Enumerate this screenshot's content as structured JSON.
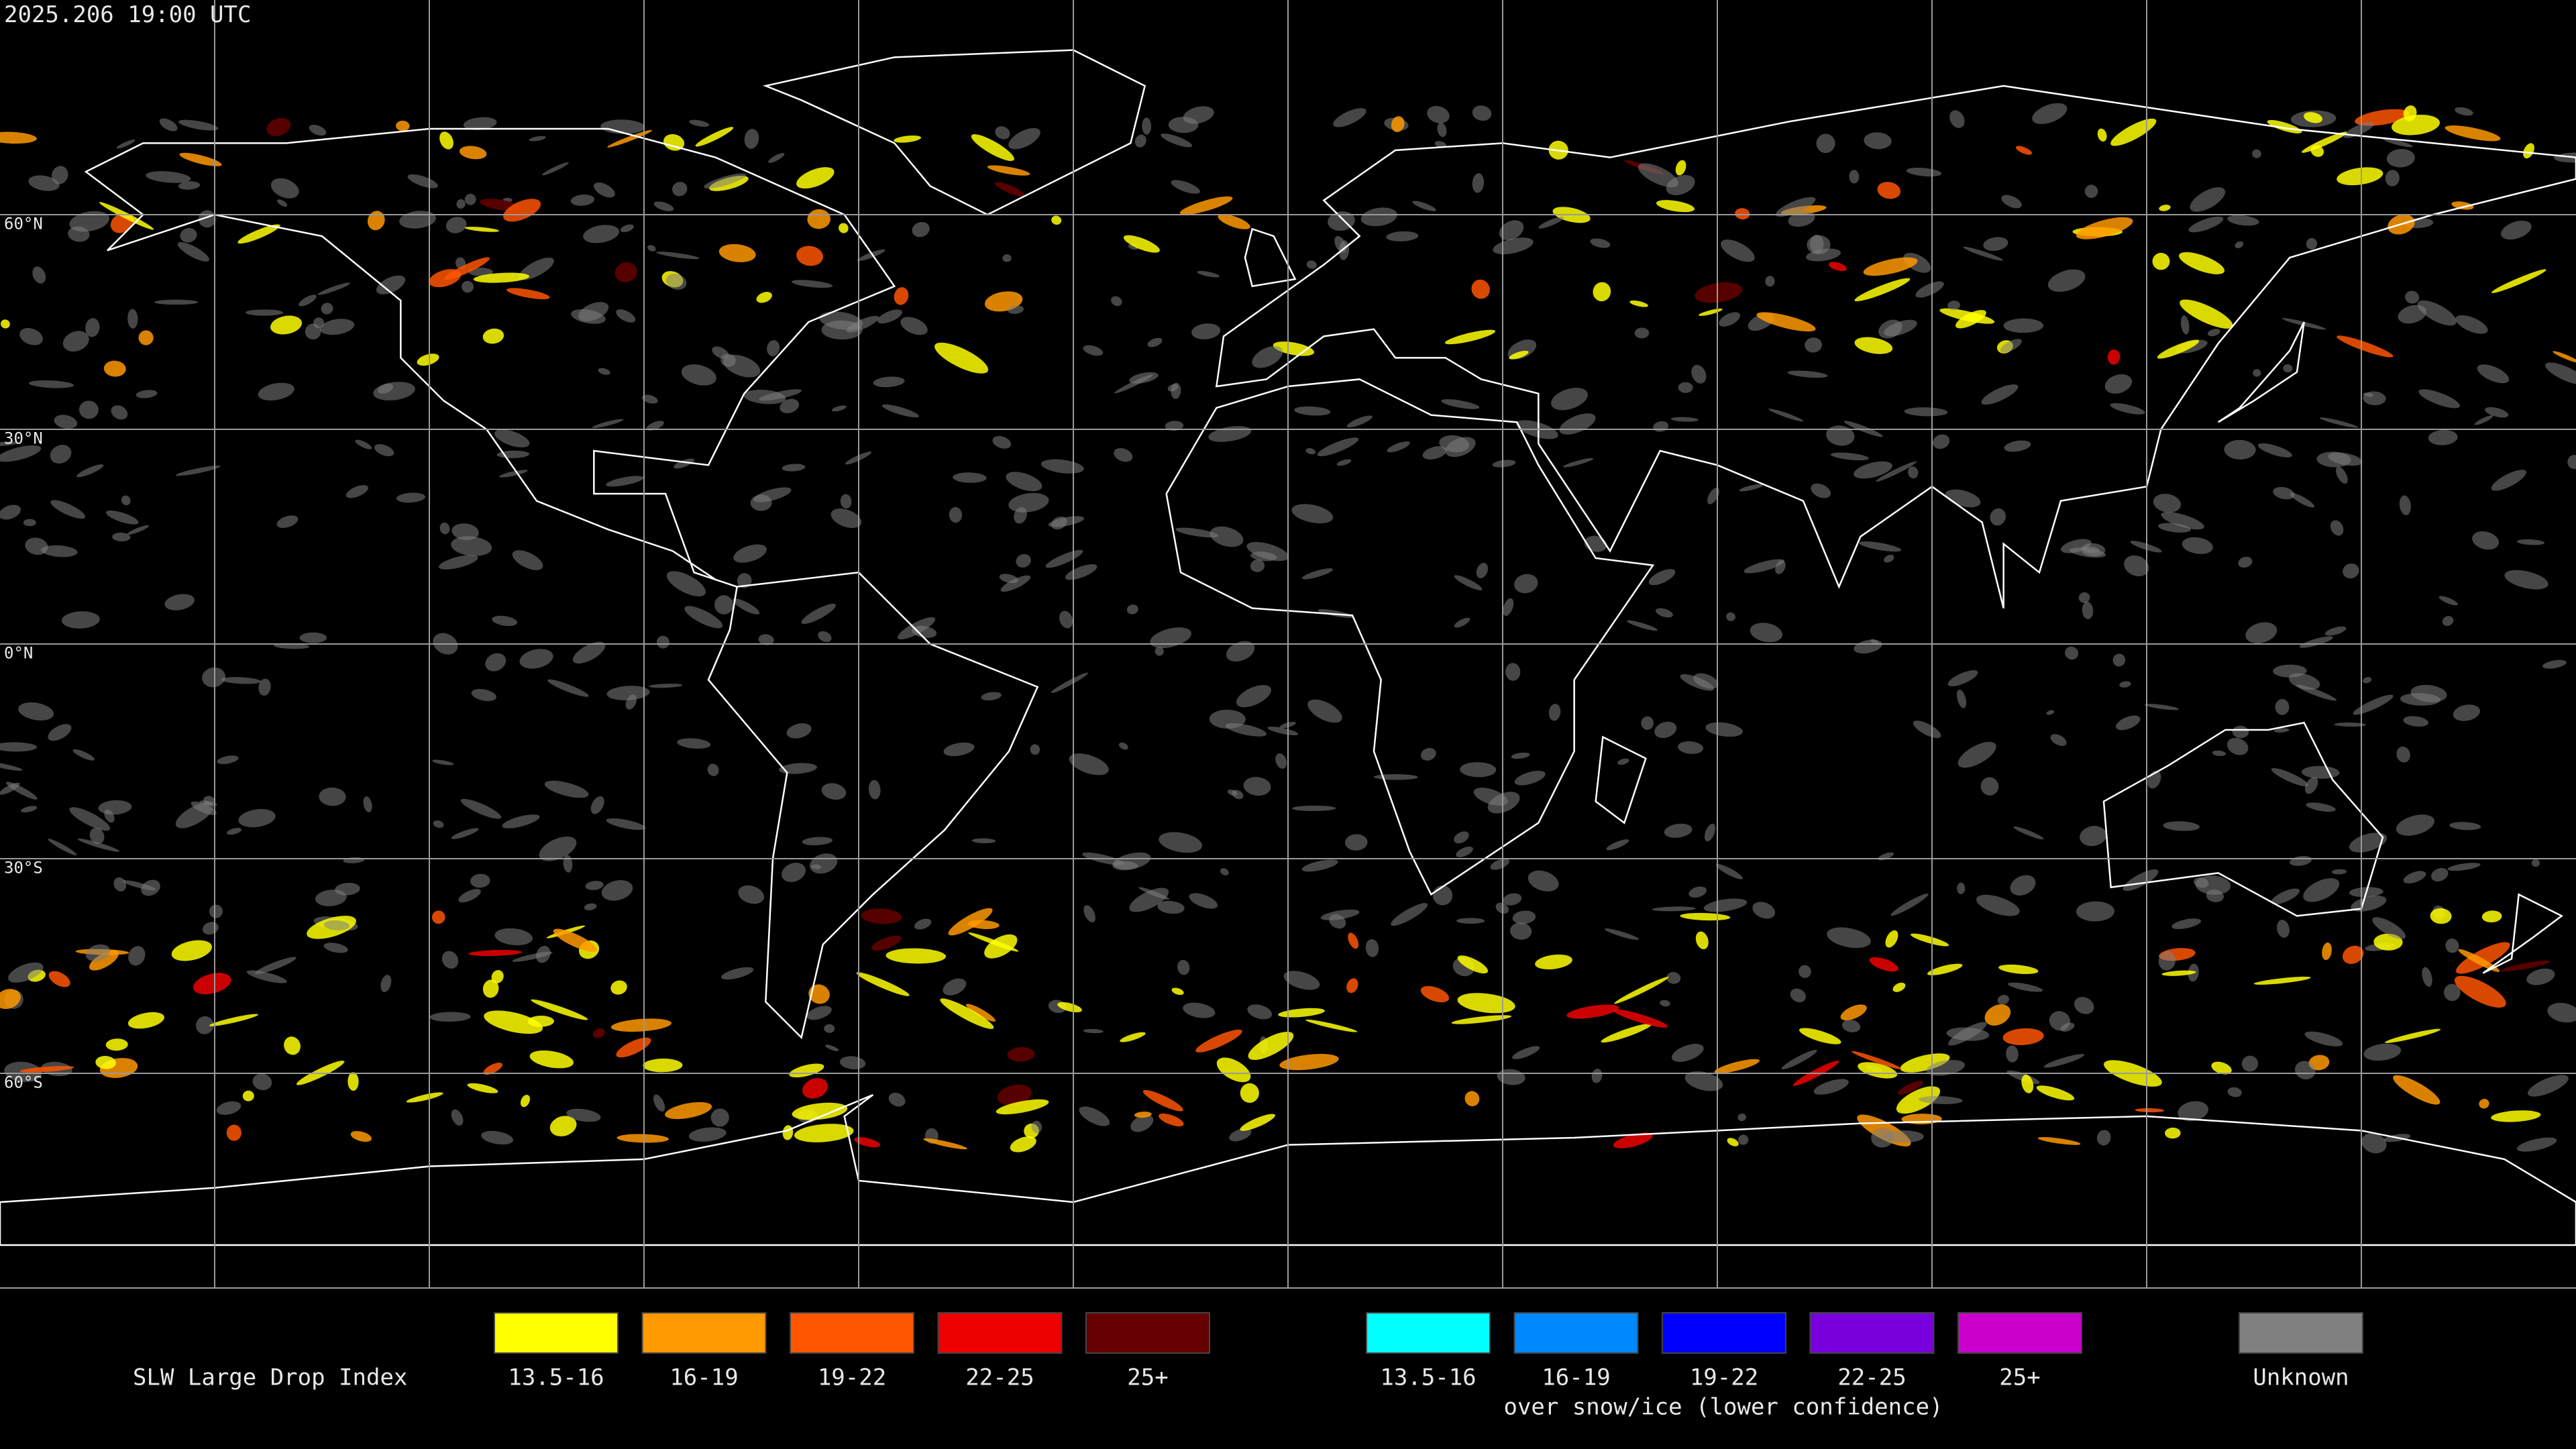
{
  "timestamp": "2025.206 19:00 UTC",
  "lat_labels": [
    "60°N",
    "30°N",
    "0°N",
    "30°S",
    "60°S"
  ],
  "legend": {
    "title": "SLW Large Drop Index",
    "items": [
      {
        "label": "13.5-16",
        "color": "#ffff00"
      },
      {
        "label": "16-19",
        "color": "#ff9900"
      },
      {
        "label": "19-22",
        "color": "#ff5500"
      },
      {
        "label": "22-25",
        "color": "#ee0000"
      },
      {
        "label": "25+",
        "color": "#660000"
      }
    ],
    "snow_items": [
      {
        "label": "13.5-16",
        "color": "#00ffff"
      },
      {
        "label": "16-19",
        "color": "#0088ff"
      },
      {
        "label": "19-22",
        "color": "#0000ff"
      },
      {
        "label": "22-25",
        "color": "#7700dd"
      },
      {
        "label": "25+",
        "color": "#cc00cc"
      }
    ],
    "snow_caption": "over snow/ice (lower confidence)",
    "unknown": {
      "label": "Unknown",
      "color": "#808080"
    }
  }
}
